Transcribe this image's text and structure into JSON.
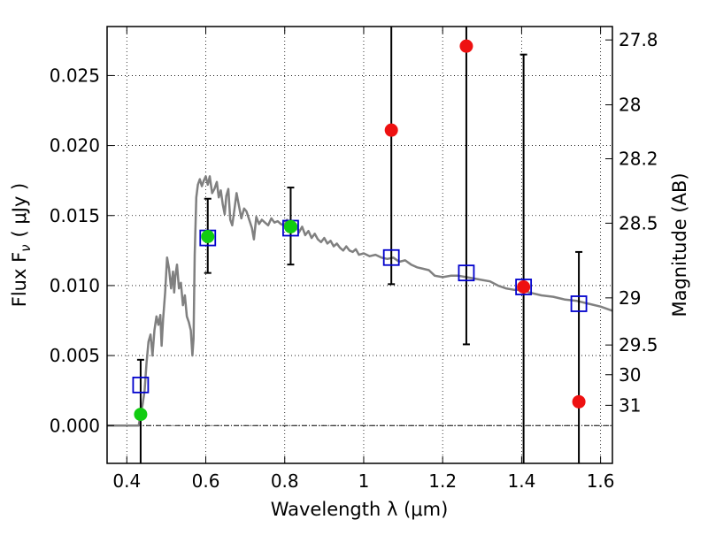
{
  "chart_data": {
    "type": "scatter",
    "title": "",
    "xlabel": "Wavelength  λ (μm)",
    "ylabel": "Flux  F",
    "ylabel_sub": "ν",
    "ylabel_unit": "( μJy )",
    "y2label": "Magnitude (AB)",
    "xlim": [
      0.35,
      1.63
    ],
    "ylim": [
      -0.0027,
      0.0285
    ],
    "grid": true,
    "legend": "none",
    "x_ticks": [
      {
        "value": 0.4,
        "label": "0.4"
      },
      {
        "value": 0.6,
        "label": "0.6"
      },
      {
        "value": 0.8,
        "label": "0.8"
      },
      {
        "value": 1.0,
        "label": "1"
      },
      {
        "value": 1.2,
        "label": "1.2"
      },
      {
        "value": 1.4,
        "label": "1.4"
      },
      {
        "value": 1.6,
        "label": "1.6"
      }
    ],
    "y_ticks": [
      {
        "value": 0.0,
        "label": "0.000"
      },
      {
        "value": 0.005,
        "label": "0.005"
      },
      {
        "value": 0.01,
        "label": "0.010"
      },
      {
        "value": 0.015,
        "label": "0.015"
      },
      {
        "value": 0.02,
        "label": "0.020"
      },
      {
        "value": 0.025,
        "label": "0.025"
      }
    ],
    "mag_ticks": [
      {
        "mag": 27.8,
        "label": "27.8"
      },
      {
        "mag": 28.0,
        "label": "28"
      },
      {
        "mag": 28.2,
        "label": "28.2"
      },
      {
        "mag": 28.5,
        "label": "28.5"
      },
      {
        "mag": 29.0,
        "label": "29"
      },
      {
        "mag": 29.5,
        "label": "29.5"
      },
      {
        "mag": 30.0,
        "label": "30"
      },
      {
        "mag": 31.0,
        "label": "31"
      }
    ],
    "colors": {
      "model": "#808080",
      "model_photometry": "#0000cc",
      "detection": "#11cc11",
      "non_detection": "#ee1111",
      "error_bar": "#000000",
      "zero_line": "#000000"
    },
    "model_sed": [
      [
        0.35,
        0.0
      ],
      [
        0.43,
        0.0
      ],
      [
        0.435,
        0.0008
      ],
      [
        0.44,
        0.0015
      ],
      [
        0.445,
        0.0025
      ],
      [
        0.45,
        0.0045
      ],
      [
        0.455,
        0.006
      ],
      [
        0.46,
        0.0065
      ],
      [
        0.465,
        0.005
      ],
      [
        0.47,
        0.0068
      ],
      [
        0.475,
        0.0078
      ],
      [
        0.48,
        0.0072
      ],
      [
        0.485,
        0.0079
      ],
      [
        0.488,
        0.0057
      ],
      [
        0.492,
        0.0076
      ],
      [
        0.497,
        0.0095
      ],
      [
        0.502,
        0.012
      ],
      [
        0.507,
        0.0112
      ],
      [
        0.512,
        0.0098
      ],
      [
        0.517,
        0.011
      ],
      [
        0.52,
        0.0095
      ],
      [
        0.523,
        0.0107
      ],
      [
        0.527,
        0.0115
      ],
      [
        0.532,
        0.0098
      ],
      [
        0.537,
        0.0102
      ],
      [
        0.542,
        0.0086
      ],
      [
        0.547,
        0.0093
      ],
      [
        0.552,
        0.0078
      ],
      [
        0.557,
        0.0074
      ],
      [
        0.562,
        0.0068
      ],
      [
        0.566,
        0.005
      ],
      [
        0.569,
        0.0062
      ],
      [
        0.572,
        0.0122
      ],
      [
        0.576,
        0.0163
      ],
      [
        0.58,
        0.0172
      ],
      [
        0.585,
        0.0176
      ],
      [
        0.59,
        0.0171
      ],
      [
        0.595,
        0.0175
      ],
      [
        0.6,
        0.0178
      ],
      [
        0.605,
        0.0172
      ],
      [
        0.61,
        0.0178
      ],
      [
        0.616,
        0.0166
      ],
      [
        0.622,
        0.0169
      ],
      [
        0.628,
        0.0174
      ],
      [
        0.633,
        0.0163
      ],
      [
        0.638,
        0.0168
      ],
      [
        0.643,
        0.0158
      ],
      [
        0.648,
        0.0151
      ],
      [
        0.652,
        0.0164
      ],
      [
        0.657,
        0.0169
      ],
      [
        0.662,
        0.0147
      ],
      [
        0.667,
        0.0143
      ],
      [
        0.672,
        0.0153
      ],
      [
        0.678,
        0.0166
      ],
      [
        0.684,
        0.0157
      ],
      [
        0.69,
        0.0148
      ],
      [
        0.697,
        0.0155
      ],
      [
        0.703,
        0.0153
      ],
      [
        0.71,
        0.0147
      ],
      [
        0.717,
        0.0141
      ],
      [
        0.722,
        0.0133
      ],
      [
        0.728,
        0.0149
      ],
      [
        0.735,
        0.0144
      ],
      [
        0.742,
        0.0147
      ],
      [
        0.75,
        0.0145
      ],
      [
        0.758,
        0.0143
      ],
      [
        0.766,
        0.0148
      ],
      [
        0.774,
        0.0145
      ],
      [
        0.782,
        0.0146
      ],
      [
        0.79,
        0.0144
      ],
      [
        0.798,
        0.0143
      ],
      [
        0.806,
        0.0147
      ],
      [
        0.812,
        0.0141
      ],
      [
        0.82,
        0.0145
      ],
      [
        0.828,
        0.0144
      ],
      [
        0.836,
        0.0138
      ],
      [
        0.844,
        0.0142
      ],
      [
        0.852,
        0.0136
      ],
      [
        0.86,
        0.0139
      ],
      [
        0.868,
        0.0134
      ],
      [
        0.876,
        0.0137
      ],
      [
        0.884,
        0.0133
      ],
      [
        0.892,
        0.0131
      ],
      [
        0.9,
        0.0134
      ],
      [
        0.908,
        0.013
      ],
      [
        0.916,
        0.0132
      ],
      [
        0.924,
        0.0128
      ],
      [
        0.932,
        0.013
      ],
      [
        0.94,
        0.0127
      ],
      [
        0.948,
        0.0125
      ],
      [
        0.956,
        0.0128
      ],
      [
        0.964,
        0.0125
      ],
      [
        0.972,
        0.0124
      ],
      [
        0.98,
        0.0126
      ],
      [
        0.988,
        0.0122
      ],
      [
        1.0,
        0.0123
      ],
      [
        1.015,
        0.0121
      ],
      [
        1.03,
        0.0122
      ],
      [
        1.045,
        0.012
      ],
      [
        1.06,
        0.0119
      ],
      [
        1.075,
        0.012
      ],
      [
        1.09,
        0.0117
      ],
      [
        1.105,
        0.0118
      ],
      [
        1.12,
        0.0115
      ],
      [
        1.135,
        0.0113
      ],
      [
        1.15,
        0.0112
      ],
      [
        1.165,
        0.0111
      ],
      [
        1.18,
        0.0107
      ],
      [
        1.2,
        0.0106
      ],
      [
        1.22,
        0.0107
      ],
      [
        1.24,
        0.0107
      ],
      [
        1.26,
        0.0106
      ],
      [
        1.28,
        0.0105
      ],
      [
        1.3,
        0.0104
      ],
      [
        1.32,
        0.0103
      ],
      [
        1.34,
        0.01
      ],
      [
        1.36,
        0.0098
      ],
      [
        1.38,
        0.0097
      ],
      [
        1.4,
        0.0097
      ],
      [
        1.42,
        0.0095
      ],
      [
        1.45,
        0.0093
      ],
      [
        1.48,
        0.0092
      ],
      [
        1.51,
        0.009
      ],
      [
        1.54,
        0.0089
      ],
      [
        1.57,
        0.0087
      ],
      [
        1.6,
        0.0085
      ],
      [
        1.63,
        0.0082
      ]
    ],
    "model_photometry": [
      {
        "x": 0.435,
        "y": 0.0029
      },
      {
        "x": 0.605,
        "y": 0.0134
      },
      {
        "x": 0.815,
        "y": 0.0141
      },
      {
        "x": 1.07,
        "y": 0.012
      },
      {
        "x": 1.26,
        "y": 0.0109
      },
      {
        "x": 1.405,
        "y": 0.0099
      },
      {
        "x": 1.545,
        "y": 0.0087
      }
    ],
    "observed": [
      {
        "x": 0.435,
        "y": 0.0008,
        "err_lo": -0.0027,
        "err_hi": 0.0047,
        "detected": true
      },
      {
        "x": 0.605,
        "y": 0.0135,
        "err_lo": 0.0109,
        "err_hi": 0.0162,
        "detected": true
      },
      {
        "x": 0.815,
        "y": 0.0142,
        "err_lo": 0.0115,
        "err_hi": 0.017,
        "detected": true
      },
      {
        "x": 1.07,
        "y": 0.0211,
        "err_lo": 0.0101,
        "err_hi": 0.0285,
        "detected": false
      },
      {
        "x": 1.26,
        "y": 0.0271,
        "err_lo": 0.0058,
        "err_hi": 0.0285,
        "detected": false
      },
      {
        "x": 1.405,
        "y": 0.0099,
        "err_lo": -0.0027,
        "err_hi": 0.0265,
        "detected": false
      },
      {
        "x": 1.545,
        "y": 0.0017,
        "err_lo": -0.0027,
        "err_hi": 0.0124,
        "detected": false
      }
    ]
  }
}
